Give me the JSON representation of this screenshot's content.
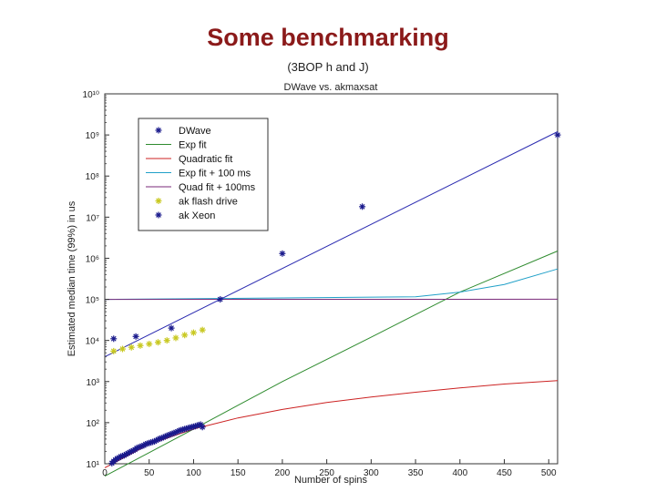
{
  "slide": {
    "title": "Some benchmarking",
    "subtitle": "(3BOP h and J)"
  },
  "chart_data": {
    "type": "scatter",
    "title": "DWave vs. akmaxsat",
    "xlabel": "Number of spins",
    "ylabel": "Estimated median time (99%) in us",
    "xlim": [
      0,
      510
    ],
    "ylim_exponent": [
      1,
      10
    ],
    "y_scale": "log",
    "x_ticks": [
      0,
      50,
      100,
      150,
      200,
      250,
      300,
      350,
      400,
      450,
      500
    ],
    "y_tick_labels": [
      "10¹",
      "10²",
      "10³",
      "10⁴",
      "10⁵",
      "10⁶",
      "10⁷",
      "10⁸",
      "10⁹",
      "10¹⁰"
    ],
    "grid": false,
    "legend_position": "top-left",
    "series": [
      {
        "name": "DWave",
        "kind": "markers",
        "marker": "asterisk",
        "color": "#1a1a8c",
        "points": [
          [
            8,
            10.3
          ],
          [
            10,
            11.5
          ],
          [
            12,
            12.5
          ],
          [
            14,
            13.5
          ],
          [
            16,
            14
          ],
          [
            18,
            15
          ],
          [
            20,
            15.5
          ],
          [
            22,
            16
          ],
          [
            24,
            17
          ],
          [
            26,
            18
          ],
          [
            28,
            19
          ],
          [
            30,
            20
          ],
          [
            32,
            21
          ],
          [
            34,
            22
          ],
          [
            36,
            24
          ],
          [
            38,
            25
          ],
          [
            40,
            26
          ],
          [
            42,
            27
          ],
          [
            44,
            28
          ],
          [
            46,
            30
          ],
          [
            48,
            31
          ],
          [
            50,
            32
          ],
          [
            52,
            33
          ],
          [
            54,
            34
          ],
          [
            56,
            35
          ],
          [
            58,
            37
          ],
          [
            60,
            39
          ],
          [
            62,
            41
          ],
          [
            64,
            42
          ],
          [
            66,
            44
          ],
          [
            68,
            46
          ],
          [
            70,
            48
          ],
          [
            72,
            50
          ],
          [
            74,
            52
          ],
          [
            76,
            54
          ],
          [
            78,
            56
          ],
          [
            80,
            58
          ],
          [
            82,
            61
          ],
          [
            84,
            64
          ],
          [
            86,
            66
          ],
          [
            88,
            68
          ],
          [
            90,
            70
          ],
          [
            92,
            72
          ],
          [
            94,
            74
          ],
          [
            96,
            76
          ],
          [
            98,
            78
          ],
          [
            100,
            80
          ],
          [
            102,
            82
          ],
          [
            104,
            85
          ],
          [
            106,
            88
          ],
          [
            108,
            90
          ],
          [
            110,
            78
          ]
        ]
      },
      {
        "name": "Exp fit",
        "kind": "line",
        "color": "#2e8b2e",
        "points": [
          [
            0,
            5
          ],
          [
            100,
            70
          ],
          [
            200,
            1000
          ],
          [
            300,
            12000
          ],
          [
            400,
            150000
          ],
          [
            510,
            1500000
          ]
        ]
      },
      {
        "name": "Quadratic fit",
        "kind": "line",
        "color": "#cc2222",
        "points": [
          [
            0,
            8
          ],
          [
            50,
            30
          ],
          [
            100,
            70
          ],
          [
            150,
            130
          ],
          [
            200,
            210
          ],
          [
            250,
            310
          ],
          [
            300,
            420
          ],
          [
            350,
            550
          ],
          [
            400,
            700
          ],
          [
            450,
            870
          ],
          [
            510,
            1050
          ]
        ]
      },
      {
        "name": "Exp fit + 100 ms",
        "kind": "line",
        "color": "#20a0c8",
        "points": [
          [
            0,
            100000
          ],
          [
            350,
            115000
          ],
          [
            400,
            150000
          ],
          [
            450,
            230000
          ],
          [
            510,
            550000
          ]
        ]
      },
      {
        "name": "Quad fit + 100ms",
        "kind": "line",
        "color": "#7a2a7a",
        "points": [
          [
            0,
            100000
          ],
          [
            510,
            101000
          ]
        ]
      },
      {
        "name": "ak flash drive",
        "kind": "markers",
        "marker": "asterisk",
        "color": "#c8c820",
        "points": [
          [
            10,
            5500
          ],
          [
            20,
            6200
          ],
          [
            30,
            6800
          ],
          [
            40,
            7500
          ],
          [
            50,
            8200
          ],
          [
            60,
            9000
          ],
          [
            70,
            10000
          ],
          [
            80,
            11500
          ],
          [
            90,
            13500
          ],
          [
            100,
            15500
          ],
          [
            110,
            18000
          ]
        ]
      },
      {
        "name": "ak Xeon",
        "kind": "markers",
        "marker": "asterisk",
        "color": "#1a1a8c",
        "points": [
          [
            10,
            11000
          ],
          [
            35,
            12500
          ],
          [
            75,
            20000
          ],
          [
            130,
            100000
          ],
          [
            200,
            1300000
          ],
          [
            290,
            18000000
          ],
          [
            510,
            1000000000
          ]
        ]
      },
      {
        "name": "",
        "kind": "line",
        "color": "#2a2ab0",
        "points": [
          [
            0,
            4000
          ],
          [
            510,
            1200000000
          ]
        ]
      }
    ]
  }
}
